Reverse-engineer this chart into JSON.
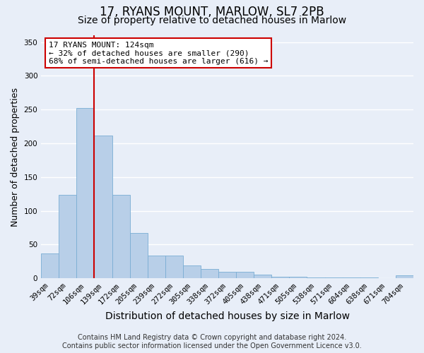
{
  "title": "17, RYANS MOUNT, MARLOW, SL7 2PB",
  "subtitle": "Size of property relative to detached houses in Marlow",
  "xlabel": "Distribution of detached houses by size in Marlow",
  "ylabel": "Number of detached properties",
  "categories": [
    "39sqm",
    "72sqm",
    "106sqm",
    "139sqm",
    "172sqm",
    "205sqm",
    "239sqm",
    "272sqm",
    "305sqm",
    "338sqm",
    "372sqm",
    "405sqm",
    "438sqm",
    "471sqm",
    "505sqm",
    "538sqm",
    "571sqm",
    "604sqm",
    "638sqm",
    "671sqm",
    "704sqm"
  ],
  "values": [
    37,
    124,
    252,
    211,
    124,
    67,
    34,
    34,
    19,
    14,
    10,
    10,
    5,
    2,
    2,
    1,
    1,
    1,
    1,
    0,
    4
  ],
  "bar_color": "#b8cfe8",
  "bar_edgecolor": "#7aadd4",
  "background_color": "#e8eef8",
  "vline_color": "#cc0000",
  "annotation_text": "17 RYANS MOUNT: 124sqm\n← 32% of detached houses are smaller (290)\n68% of semi-detached houses are larger (616) →",
  "annotation_box_color": "#ffffff",
  "annotation_box_edgecolor": "#cc0000",
  "ylim": [
    0,
    360
  ],
  "yticks": [
    0,
    50,
    100,
    150,
    200,
    250,
    300,
    350
  ],
  "footer_line1": "Contains HM Land Registry data © Crown copyright and database right 2024.",
  "footer_line2": "Contains public sector information licensed under the Open Government Licence v3.0.",
  "grid_color": "#ffffff",
  "title_fontsize": 12,
  "subtitle_fontsize": 10,
  "ylabel_fontsize": 9,
  "xlabel_fontsize": 10,
  "tick_fontsize": 7.5,
  "annotation_fontsize": 8,
  "footer_fontsize": 7
}
